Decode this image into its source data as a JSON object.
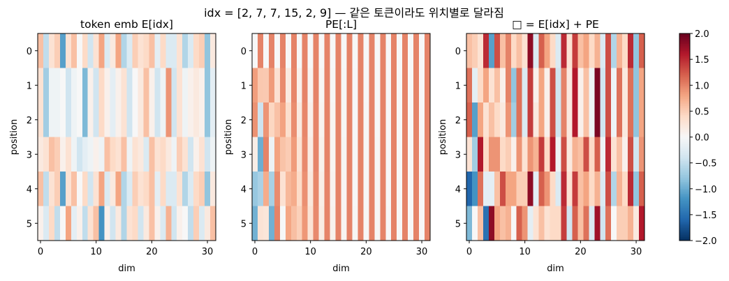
{
  "suptitle": "idx = [2, 7, 7, 15, 2, 9] — 같은 토큰이라도 위치별로 달라짐",
  "colors": {
    "cmap": "RdBu_r",
    "neg": "#053061",
    "mid": "#f7f7f7",
    "pos": "#67001f"
  },
  "colorbar": {
    "min": -2.0,
    "max": 2.0,
    "ticks": [
      "2.0",
      "1.5",
      "1.0",
      "0.5",
      "0.0",
      "−0.5",
      "−1.0",
      "−1.5",
      "−2.0"
    ]
  },
  "chart_data": [
    {
      "type": "heatmap",
      "title": "token emb E[idx]",
      "xlabel": "dim",
      "ylabel": "position",
      "x_ticks": [
        "0",
        "10",
        "20",
        "30"
      ],
      "y_ticks": [
        "0",
        "1",
        "2",
        "3",
        "4",
        "5"
      ],
      "vlim": [
        -2,
        2
      ],
      "values": [
        [
          0.6,
          -0.5,
          0.3,
          0.5,
          -1.1,
          0.3,
          0.6,
          0.0,
          0.4,
          -0.4,
          0.3,
          0.8,
          -0.3,
          0.2,
          0.8,
          -0.6,
          -0.3,
          0.5,
          0.3,
          0.4,
          0.6,
          -0.2,
          0.4,
          -0.3,
          -0.3,
          0.3,
          -0.6,
          -0.3,
          0.4,
          0.5,
          -0.8,
          0.2
        ],
        [
          0.3,
          -0.7,
          -0.1,
          -0.1,
          0.0,
          -0.4,
          -0.1,
          0.0,
          -0.9,
          0.1,
          -0.4,
          0.4,
          0.1,
          -0.2,
          0.1,
          0.3,
          -0.4,
          0.0,
          0.2,
          0.6,
          0.1,
          -0.4,
          -0.1,
          0.9,
          -0.4,
          0.3,
          -0.1,
          0.1,
          0.2,
          0.1,
          -0.8,
          -0.2
        ],
        [
          0.3,
          -0.7,
          -0.1,
          -0.1,
          0.0,
          -0.4,
          -0.1,
          0.0,
          -0.9,
          0.1,
          -0.4,
          0.4,
          0.1,
          -0.2,
          0.1,
          0.3,
          -0.4,
          0.0,
          0.2,
          0.6,
          0.1,
          -0.4,
          -0.1,
          0.9,
          -0.4,
          0.3,
          -0.1,
          0.1,
          0.2,
          0.1,
          -0.8,
          -0.2
        ],
        [
          0.2,
          0.3,
          0.6,
          0.5,
          0.1,
          0.3,
          -0.1,
          -0.4,
          -0.2,
          -0.1,
          0.1,
          -0.1,
          0.6,
          0.4,
          0.3,
          0.6,
          -0.1,
          0.3,
          0.2,
          -0.3,
          0.6,
          0.3,
          0.4,
          0.2,
          -0.1,
          0.5,
          0.3,
          -0.4,
          0.1,
          0.3,
          -0.4,
          -0.1
        ],
        [
          0.6,
          -0.5,
          0.3,
          0.5,
          -1.1,
          0.3,
          0.6,
          0.0,
          0.4,
          -0.4,
          0.3,
          0.8,
          -0.3,
          0.2,
          0.8,
          -0.6,
          -0.3,
          0.5,
          0.3,
          0.4,
          0.6,
          -0.2,
          0.4,
          -0.3,
          -0.3,
          0.3,
          -0.6,
          -0.3,
          0.4,
          0.5,
          -0.8,
          0.2
        ],
        [
          0.1,
          -0.3,
          0.4,
          -0.5,
          0.0,
          0.8,
          -0.2,
          0.1,
          -0.5,
          0.3,
          0.6,
          -1.2,
          0.1,
          -0.4,
          0.2,
          -0.6,
          0.3,
          0.4,
          -0.4,
          0.2,
          0.6,
          0.1,
          -0.3,
          0.7,
          -0.4,
          0.1,
          0.0,
          -0.5,
          0.5,
          -0.3,
          0.2,
          0.6
        ]
      ]
    },
    {
      "type": "heatmap",
      "title": "PE[:L]",
      "xlabel": "dim",
      "ylabel": "position",
      "x_ticks": [
        "0",
        "10",
        "20",
        "30"
      ],
      "y_ticks": [
        "0",
        "1",
        "2",
        "3",
        "4",
        "5"
      ],
      "vlim": [
        -2,
        2
      ],
      "values": [
        [
          0.0,
          1.0,
          0.0,
          1.0,
          0.0,
          1.0,
          0.0,
          1.0,
          0.0,
          1.0,
          0.0,
          1.0,
          0.0,
          1.0,
          0.0,
          1.0,
          0.0,
          1.0,
          0.0,
          1.0,
          0.0,
          1.0,
          0.0,
          1.0,
          0.0,
          1.0,
          0.0,
          1.0,
          0.0,
          1.0,
          0.0,
          1.0
        ],
        [
          0.84,
          0.54,
          0.53,
          0.85,
          0.31,
          0.95,
          0.18,
          0.98,
          0.1,
          1.0,
          0.06,
          1.0,
          0.03,
          1.0,
          0.02,
          1.0,
          0.01,
          1.0,
          0.01,
          1.0,
          0.0,
          1.0,
          0.0,
          1.0,
          0.0,
          1.0,
          0.0,
          1.0,
          0.0,
          1.0,
          0.0,
          1.0
        ],
        [
          0.91,
          -0.42,
          0.9,
          0.43,
          0.59,
          0.81,
          0.35,
          0.94,
          0.2,
          0.98,
          0.11,
          0.99,
          0.06,
          1.0,
          0.04,
          1.0,
          0.02,
          1.0,
          0.01,
          1.0,
          0.01,
          1.0,
          0.0,
          1.0,
          0.0,
          1.0,
          0.0,
          1.0,
          0.0,
          1.0,
          0.0,
          1.0
        ],
        [
          0.14,
          -0.99,
          1.0,
          -0.12,
          0.81,
          0.58,
          0.51,
          0.86,
          0.3,
          0.96,
          0.17,
          0.99,
          0.09,
          1.0,
          0.05,
          1.0,
          0.03,
          1.0,
          0.02,
          1.0,
          0.01,
          1.0,
          0.01,
          1.0,
          0.0,
          1.0,
          0.0,
          1.0,
          0.0,
          1.0,
          0.0,
          1.0
        ],
        [
          -0.76,
          -0.65,
          0.75,
          -0.66,
          0.95,
          0.31,
          0.66,
          0.75,
          0.39,
          0.92,
          0.22,
          0.97,
          0.13,
          0.99,
          0.07,
          1.0,
          0.04,
          1.0,
          0.02,
          1.0,
          0.01,
          1.0,
          0.01,
          1.0,
          0.0,
          1.0,
          0.0,
          1.0,
          0.0,
          1.0,
          0.0,
          1.0
        ],
        [
          -0.96,
          0.28,
          0.25,
          -0.97,
          1.0,
          -0.01,
          0.79,
          0.61,
          0.48,
          0.88,
          0.28,
          0.96,
          0.16,
          0.99,
          0.09,
          1.0,
          0.05,
          1.0,
          0.03,
          1.0,
          0.02,
          1.0,
          0.01,
          1.0,
          0.01,
          1.0,
          0.0,
          1.0,
          0.0,
          1.0,
          0.0,
          1.0
        ]
      ]
    },
    {
      "type": "heatmap",
      "title": "□ = E[idx] + PE",
      "xlabel": "dim",
      "ylabel": "position",
      "x_ticks": [
        "0",
        "10",
        "20",
        "30"
      ],
      "y_ticks": [
        "0",
        "1",
        "2",
        "3",
        "4",
        "5"
      ],
      "vlim": [
        -2,
        2
      ],
      "values": [
        [
          0.6,
          0.5,
          0.3,
          1.5,
          -1.1,
          1.3,
          0.6,
          1.0,
          0.4,
          0.6,
          0.3,
          1.8,
          -0.3,
          1.2,
          0.8,
          0.4,
          -0.3,
          1.5,
          0.3,
          1.4,
          0.6,
          0.8,
          0.4,
          0.7,
          -0.3,
          1.3,
          -0.6,
          0.7,
          0.4,
          1.5,
          -0.8,
          1.2
        ],
        [
          1.1,
          -0.2,
          0.4,
          0.8,
          0.3,
          0.6,
          0.1,
          1.0,
          -0.8,
          1.1,
          -0.3,
          1.4,
          0.1,
          0.8,
          0.1,
          1.3,
          -0.4,
          1.0,
          0.2,
          1.6,
          0.1,
          0.6,
          -0.1,
          1.9,
          -0.4,
          1.3,
          -0.1,
          1.1,
          0.2,
          1.1,
          -0.8,
          0.8
        ],
        [
          1.2,
          -1.1,
          0.8,
          0.3,
          0.6,
          0.4,
          0.2,
          0.9,
          -0.7,
          1.1,
          -0.3,
          1.4,
          0.2,
          0.8,
          0.1,
          1.3,
          -0.4,
          1.0,
          0.2,
          1.6,
          0.1,
          0.6,
          -0.1,
          1.9,
          -0.4,
          1.3,
          -0.1,
          1.1,
          0.2,
          1.1,
          -0.8,
          0.8
        ],
        [
          0.3,
          -0.7,
          1.6,
          0.4,
          0.9,
          0.9,
          0.4,
          0.5,
          0.1,
          0.9,
          0.3,
          0.9,
          0.7,
          1.4,
          0.4,
          1.6,
          -0.1,
          1.3,
          0.2,
          0.7,
          0.6,
          1.3,
          0.4,
          1.2,
          -0.1,
          1.5,
          0.3,
          0.6,
          0.1,
          1.3,
          -0.4,
          0.9
        ],
        [
          -1.6,
          -1.2,
          1.1,
          -0.2,
          -0.2,
          0.6,
          1.3,
          0.8,
          0.8,
          0.5,
          0.5,
          1.8,
          -0.2,
          1.2,
          0.9,
          0.4,
          -0.3,
          1.5,
          0.3,
          1.4,
          0.6,
          0.8,
          0.4,
          0.7,
          -0.3,
          1.3,
          -0.6,
          0.7,
          0.4,
          1.5,
          -0.8,
          1.2
        ],
        [
          -0.9,
          0.0,
          0.6,
          -1.5,
          1.8,
          0.8,
          0.6,
          0.7,
          0.0,
          1.2,
          0.9,
          -0.2,
          0.3,
          0.6,
          0.3,
          0.4,
          0.4,
          1.4,
          -0.4,
          1.2,
          0.6,
          1.1,
          -0.3,
          1.7,
          -0.4,
          1.1,
          0.0,
          0.5,
          0.5,
          0.7,
          0.2,
          1.6
        ]
      ]
    }
  ]
}
